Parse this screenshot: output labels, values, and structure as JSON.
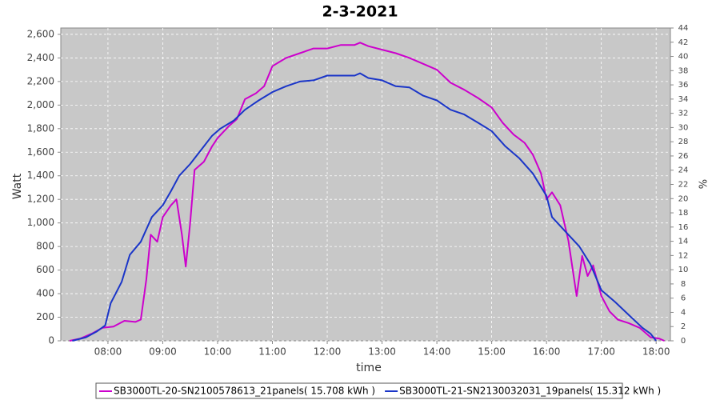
{
  "chart_data": {
    "type": "line",
    "title": "2-3-2021",
    "x_label": "time",
    "y_label": "Watt",
    "y2_label": "%",
    "xlim": [
      7.14,
      18.26
    ],
    "xticks": [
      {
        "value": 8,
        "label": "08:00"
      },
      {
        "value": 9,
        "label": "09:00"
      },
      {
        "value": 10,
        "label": "10:00"
      },
      {
        "value": 11,
        "label": "11:00"
      },
      {
        "value": 12,
        "label": "12:00"
      },
      {
        "value": 13,
        "label": "13:00"
      },
      {
        "value": 14,
        "label": "14:00"
      },
      {
        "value": 15,
        "label": "15:00"
      },
      {
        "value": 16,
        "label": "16:00"
      },
      {
        "value": 17,
        "label": "17:00"
      },
      {
        "value": 18,
        "label": "18:00"
      }
    ],
    "ylim": [
      0,
      2654
    ],
    "yticks": [
      0,
      200,
      400,
      600,
      800,
      {
        "value": 1000,
        "label": "1,000"
      },
      {
        "value": 1200,
        "label": "1,200"
      },
      {
        "value": 1400,
        "label": "1,400"
      },
      {
        "value": 1600,
        "label": "1,600"
      },
      {
        "value": 1800,
        "label": "1,800"
      },
      {
        "value": 2000,
        "label": "2,000"
      },
      {
        "value": 2200,
        "label": "2,200"
      },
      {
        "value": 2400,
        "label": "2,400"
      },
      {
        "value": 2600,
        "label": "2,600"
      }
    ],
    "y2lim": [
      0,
      44
    ],
    "y2ticks": [
      0,
      2,
      4,
      6,
      8,
      10,
      12,
      14,
      16,
      18,
      20,
      22,
      24,
      26,
      28,
      30,
      32,
      34,
      36,
      38,
      40,
      42,
      44
    ],
    "grid": true,
    "series": [
      {
        "name": "SB3000TL-20-SN2100578613_21panels( 15.708 kWh )",
        "color": "#cc00cc",
        "x": [
          7.3,
          7.5,
          7.7,
          7.9,
          8.1,
          8.3,
          8.5,
          8.6,
          8.7,
          8.78,
          8.9,
          9.0,
          9.15,
          9.25,
          9.35,
          9.42,
          9.5,
          9.58,
          9.75,
          9.9,
          10.0,
          10.2,
          10.35,
          10.5,
          10.7,
          10.85,
          11.0,
          11.25,
          11.5,
          11.75,
          12.0,
          12.25,
          12.5,
          12.6,
          12.75,
          13.0,
          13.25,
          13.5,
          13.75,
          14.0,
          14.25,
          14.5,
          14.75,
          15.0,
          15.2,
          15.4,
          15.6,
          15.75,
          15.9,
          16.0,
          16.1,
          16.25,
          16.4,
          16.55,
          16.65,
          16.75,
          16.85,
          17.0,
          17.15,
          17.3,
          17.5,
          17.7,
          17.9,
          18.05,
          18.15
        ],
        "values": [
          0,
          20,
          60,
          110,
          120,
          170,
          160,
          180,
          520,
          900,
          840,
          1050,
          1150,
          1200,
          900,
          630,
          1000,
          1450,
          1520,
          1650,
          1720,
          1820,
          1880,
          2050,
          2100,
          2160,
          2330,
          2400,
          2440,
          2480,
          2480,
          2510,
          2510,
          2530,
          2500,
          2470,
          2440,
          2400,
          2350,
          2300,
          2190,
          2130,
          2060,
          1980,
          1850,
          1750,
          1680,
          1580,
          1420,
          1200,
          1260,
          1150,
          850,
          380,
          720,
          550,
          640,
          380,
          250,
          180,
          150,
          110,
          30,
          20,
          0
        ]
      },
      {
        "name": "SB3000TL-21-SN2130032031_19panels( 15.312 kWh )",
        "color": "#1a35c8",
        "x": [
          7.35,
          7.6,
          7.8,
          7.95,
          8.05,
          8.25,
          8.4,
          8.6,
          8.8,
          9.0,
          9.15,
          9.3,
          9.5,
          9.75,
          9.9,
          10.05,
          10.3,
          10.5,
          10.75,
          11.0,
          11.25,
          11.5,
          11.75,
          12.0,
          12.25,
          12.5,
          12.6,
          12.75,
          13.0,
          13.25,
          13.5,
          13.75,
          14.0,
          14.25,
          14.5,
          14.75,
          15.0,
          15.25,
          15.5,
          15.75,
          16.0,
          16.1,
          16.4,
          16.6,
          16.8,
          17.0,
          17.25,
          17.5,
          17.75,
          17.9,
          18.0
        ],
        "values": [
          0,
          30,
          80,
          130,
          320,
          500,
          730,
          840,
          1050,
          1150,
          1270,
          1400,
          1500,
          1650,
          1740,
          1800,
          1870,
          1960,
          2040,
          2110,
          2160,
          2200,
          2210,
          2250,
          2250,
          2250,
          2270,
          2230,
          2210,
          2160,
          2150,
          2080,
          2040,
          1960,
          1920,
          1850,
          1780,
          1650,
          1550,
          1420,
          1230,
          1050,
          900,
          800,
          650,
          430,
          330,
          220,
          110,
          60,
          0
        ]
      }
    ]
  }
}
